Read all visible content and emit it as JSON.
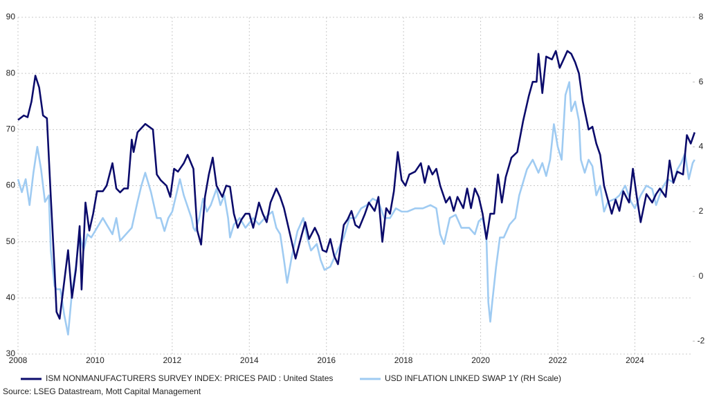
{
  "chart_data": {
    "type": "line",
    "source": "Source: LSEG Datastream, Mott Capital Management",
    "xlim": [
      2008,
      2025.5
    ],
    "xticks": [
      2008,
      2010,
      2012,
      2014,
      2016,
      2018,
      2020,
      2022,
      2024
    ],
    "ylim": [
      30,
      90
    ],
    "yticks": [
      30,
      40,
      50,
      60,
      70,
      80,
      90
    ],
    "y2lim": [
      -2.4,
      8
    ],
    "y2ticks": [
      -2,
      0,
      2,
      4,
      6,
      8
    ],
    "grid": true,
    "legend": "bottom-left",
    "series": [
      {
        "name": "ISM NONMANUFACTURERS SURVEY INDEX: PRICES PAID : United States",
        "color": "#0b0b6b",
        "axis": "y",
        "x": [
          2008.0,
          2008.15,
          2008.25,
          2008.35,
          2008.45,
          2008.55,
          2008.65,
          2008.75,
          2008.85,
          2008.95,
          2009.0,
          2009.08,
          2009.2,
          2009.3,
          2009.4,
          2009.5,
          2009.6,
          2009.65,
          2009.75,
          2009.85,
          2009.95,
          2010.05,
          2010.2,
          2010.3,
          2010.45,
          2010.55,
          2010.65,
          2010.75,
          2010.85,
          2010.95,
          2011.0,
          2011.1,
          2011.3,
          2011.5,
          2011.6,
          2011.7,
          2011.85,
          2011.95,
          2012.05,
          2012.15,
          2012.3,
          2012.4,
          2012.55,
          2012.65,
          2012.75,
          2012.85,
          2012.95,
          2013.05,
          2013.15,
          2013.3,
          2013.4,
          2013.5,
          2013.6,
          2013.7,
          2013.8,
          2013.9,
          2014.0,
          2014.1,
          2014.25,
          2014.35,
          2014.45,
          2014.55,
          2014.7,
          2014.8,
          2014.9,
          2015.0,
          2015.1,
          2015.2,
          2015.35,
          2015.45,
          2015.55,
          2015.7,
          2015.8,
          2015.9,
          2016.0,
          2016.1,
          2016.2,
          2016.3,
          2016.45,
          2016.55,
          2016.65,
          2016.75,
          2016.85,
          2017.0,
          2017.1,
          2017.25,
          2017.35,
          2017.45,
          2017.55,
          2017.65,
          2017.75,
          2017.85,
          2017.95,
          2018.05,
          2018.15,
          2018.3,
          2018.45,
          2018.55,
          2018.65,
          2018.75,
          2018.85,
          2018.95,
          2019.1,
          2019.2,
          2019.3,
          2019.4,
          2019.55,
          2019.65,
          2019.75,
          2019.85,
          2019.95,
          2020.05,
          2020.15,
          2020.25,
          2020.35,
          2020.45,
          2020.55,
          2020.65,
          2020.8,
          2020.95,
          2021.1,
          2021.25,
          2021.35,
          2021.45,
          2021.5,
          2021.6,
          2021.7,
          2021.85,
          2021.95,
          2022.05,
          2022.15,
          2022.25,
          2022.35,
          2022.45,
          2022.55,
          2022.65,
          2022.8,
          2022.9,
          2023.0,
          2023.1,
          2023.2,
          2023.3,
          2023.4,
          2023.5,
          2023.6,
          2023.7,
          2023.85,
          2023.95,
          2024.05,
          2024.15,
          2024.3,
          2024.45,
          2024.55,
          2024.65,
          2024.8,
          2024.9,
          2025.0,
          2025.1,
          2025.25,
          2025.35,
          2025.45,
          2025.55
        ],
        "values": [
          71.7,
          72.5,
          72.2,
          75,
          79.6,
          77.5,
          72.5,
          72,
          58,
          45,
          37.5,
          36.3,
          43,
          48.5,
          40,
          45,
          52.8,
          41.5,
          57,
          52,
          55,
          59,
          59,
          60,
          64,
          59.5,
          58.8,
          59.5,
          59.5,
          68.2,
          66,
          69.5,
          71,
          70,
          62,
          61,
          60,
          58,
          63,
          62.5,
          64,
          65.5,
          63,
          52,
          49.5,
          58,
          62,
          65,
          60,
          58,
          60,
          59.8,
          55,
          52.5,
          54,
          55,
          55,
          52.5,
          57,
          55,
          53.5,
          57,
          59.5,
          58,
          56,
          53,
          50,
          47,
          51,
          53.5,
          50.5,
          52.5,
          51,
          48.5,
          48.2,
          50.5,
          47.5,
          46,
          53,
          54,
          55.5,
          53,
          52.5,
          55,
          57,
          55.5,
          58,
          50,
          56,
          55,
          59,
          66,
          61,
          60,
          62,
          62.5,
          64,
          60.5,
          63.5,
          62,
          63,
          60,
          57,
          58,
          55.5,
          58,
          56,
          59.5,
          56,
          59.5,
          58,
          55,
          50.5,
          55,
          55,
          62,
          57,
          61.5,
          65,
          66,
          71.5,
          76,
          78.5,
          78.5,
          83.5,
          76.5,
          83,
          82.5,
          84,
          81,
          82.5,
          84,
          83.5,
          82,
          80,
          75,
          70,
          70.5,
          67.5,
          65.5,
          60,
          57.5,
          55,
          57.5,
          55.5,
          59,
          57,
          63,
          58,
          53.5,
          58.5,
          57,
          58.5,
          59.5,
          58,
          64.5,
          60.5,
          62.5,
          62,
          69,
          67.5,
          69.5
        ]
      },
      {
        "name": "USD INFLATION LINKED SWAP 1Y (RH Scale)",
        "color": "#9fcbf2",
        "axis": "y2",
        "x": [
          2008.0,
          2008.1,
          2008.2,
          2008.3,
          2008.4,
          2008.45,
          2008.5,
          2008.6,
          2008.7,
          2008.8,
          2008.85,
          2008.95,
          2009.0,
          2009.1,
          2009.2,
          2009.3,
          2009.4,
          2009.5,
          2009.6,
          2009.7,
          2009.8,
          2009.9,
          2010.0,
          2010.2,
          2010.3,
          2010.45,
          2010.55,
          2010.65,
          2010.8,
          2010.95,
          2011.1,
          2011.2,
          2011.3,
          2011.45,
          2011.6,
          2011.7,
          2011.8,
          2011.9,
          2012.0,
          2012.2,
          2012.3,
          2012.5,
          2012.55,
          2012.6,
          2012.7,
          2012.8,
          2012.9,
          2013.0,
          2013.15,
          2013.25,
          2013.35,
          2013.45,
          2013.5,
          2013.6,
          2013.75,
          2013.9,
          2014.1,
          2014.25,
          2014.4,
          2014.5,
          2014.6,
          2014.7,
          2014.8,
          2014.9,
          2014.98,
          2015.1,
          2015.25,
          2015.4,
          2015.5,
          2015.6,
          2015.75,
          2015.85,
          2015.95,
          2016.1,
          2016.25,
          2016.45,
          2016.6,
          2016.75,
          2016.9,
          2017.05,
          2017.2,
          2017.35,
          2017.5,
          2017.65,
          2017.8,
          2017.95,
          2018.1,
          2018.3,
          2018.5,
          2018.7,
          2018.85,
          2018.95,
          2019.05,
          2019.2,
          2019.35,
          2019.5,
          2019.7,
          2019.85,
          2019.95,
          2020.05,
          2020.15,
          2020.2,
          2020.25,
          2020.3,
          2020.4,
          2020.5,
          2020.6,
          2020.75,
          2020.9,
          2021.0,
          2021.2,
          2021.35,
          2021.5,
          2021.6,
          2021.7,
          2021.8,
          2021.9,
          2022.0,
          2022.1,
          2022.2,
          2022.3,
          2022.35,
          2022.45,
          2022.55,
          2022.6,
          2022.7,
          2022.8,
          2022.9,
          2023.0,
          2023.1,
          2023.2,
          2023.3,
          2023.5,
          2023.6,
          2023.75,
          2023.9,
          2024.0,
          2024.15,
          2024.3,
          2024.45,
          2024.55,
          2024.7,
          2024.85,
          2025.0,
          2025.1,
          2025.2,
          2025.3,
          2025.4,
          2025.5,
          2025.55
        ],
        "values": [
          3.0,
          2.6,
          3.0,
          2.2,
          3.2,
          3.6,
          4.0,
          3.3,
          2.3,
          2.5,
          0.8,
          -0.3,
          -0.4,
          -0.4,
          -1.2,
          -1.8,
          -0.5,
          0.3,
          1.3,
          0.8,
          1.3,
          1.2,
          1.4,
          1.8,
          1.6,
          1.3,
          1.8,
          1.1,
          1.3,
          1.5,
          2.3,
          2.8,
          3.2,
          2.6,
          1.8,
          1.8,
          1.4,
          1.8,
          2.0,
          3.0,
          2.5,
          1.8,
          1.5,
          1.4,
          1.8,
          2.4,
          2.0,
          2.2,
          2.7,
          2.2,
          2.5,
          1.8,
          1.2,
          1.6,
          1.8,
          1.5,
          1.8,
          1.6,
          1.8,
          1.9,
          2.0,
          1.5,
          1.3,
          0.5,
          -0.2,
          0.6,
          1.4,
          1.8,
          1.2,
          0.8,
          1.0,
          0.5,
          0.2,
          0.3,
          0.7,
          1.2,
          1.8,
          1.8,
          2.1,
          2.2,
          2.4,
          2.3,
          1.8,
          1.8,
          2.1,
          2.0,
          2.0,
          2.1,
          2.1,
          2.2,
          2.1,
          1.3,
          1.0,
          1.8,
          1.9,
          1.5,
          1.5,
          1.3,
          1.7,
          1.8,
          1.2,
          -0.8,
          -1.4,
          -0.8,
          0.3,
          1.2,
          1.2,
          1.6,
          1.8,
          2.5,
          3.3,
          3.6,
          3.2,
          3.5,
          3.1,
          3.6,
          4.7,
          4.0,
          3.6,
          5.6,
          6.0,
          5.1,
          5.4,
          4.8,
          3.6,
          3.2,
          3.6,
          3.4,
          2.5,
          2.8,
          2.0,
          2.3,
          2.4,
          2.5,
          2.8,
          2.3,
          2.1,
          2.5,
          2.8,
          2.7,
          2.2,
          2.7,
          3.0,
          2.9,
          3.3,
          3.5,
          3.8,
          3.0,
          3.5,
          3.6
        ]
      }
    ]
  }
}
